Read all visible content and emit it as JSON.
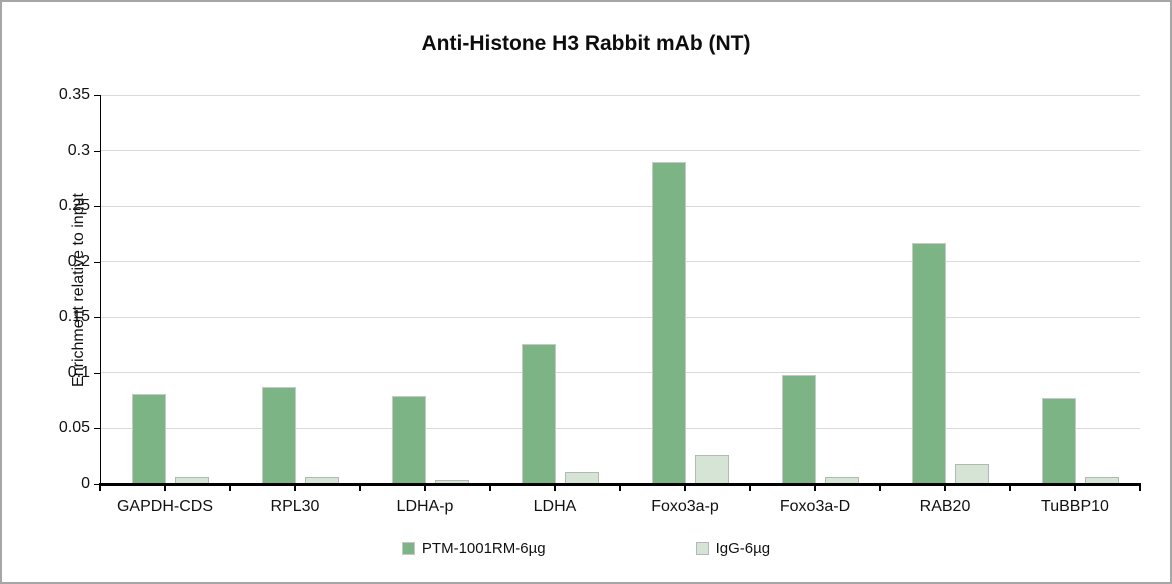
{
  "window": {
    "background": "#ffffff",
    "frame_border_color": "#a6a6a6"
  },
  "chart_data": {
    "type": "bar",
    "title": "Anti-Histone H3 Rabbit mAb (NT)",
    "ylabel": "Enrichment relative to input",
    "xlabel": "",
    "ylim": [
      0,
      0.35
    ],
    "ytick_interval": 0.05,
    "ytick_labels": [
      "0",
      "0.05",
      "0.1",
      "0.15",
      "0.2",
      "0.25",
      "0.3",
      "0.35"
    ],
    "grid": true,
    "gridline_color": "#d9d9d9",
    "axis_color": "#000000",
    "legend_position": "bottom-center",
    "categories": [
      "GAPDH-CDS",
      "RPL30",
      "LDHA-p",
      "LDHA",
      "Foxo3a-p",
      "Foxo3a-D",
      "RAB20",
      "TuBBP10"
    ],
    "series": [
      {
        "name": "PTM-1001RM-6µg",
        "color": "#7cb485",
        "border_color": "#c6c9c6",
        "values": [
          0.081,
          0.087,
          0.079,
          0.126,
          0.29,
          0.098,
          0.217,
          0.077
        ]
      },
      {
        "name": "IgG-6µg",
        "color": "#d6e4d5",
        "border_color": "#b2b8b2",
        "values": [
          0.006,
          0.006,
          0.004,
          0.011,
          0.026,
          0.006,
          0.018,
          0.006
        ]
      }
    ]
  }
}
